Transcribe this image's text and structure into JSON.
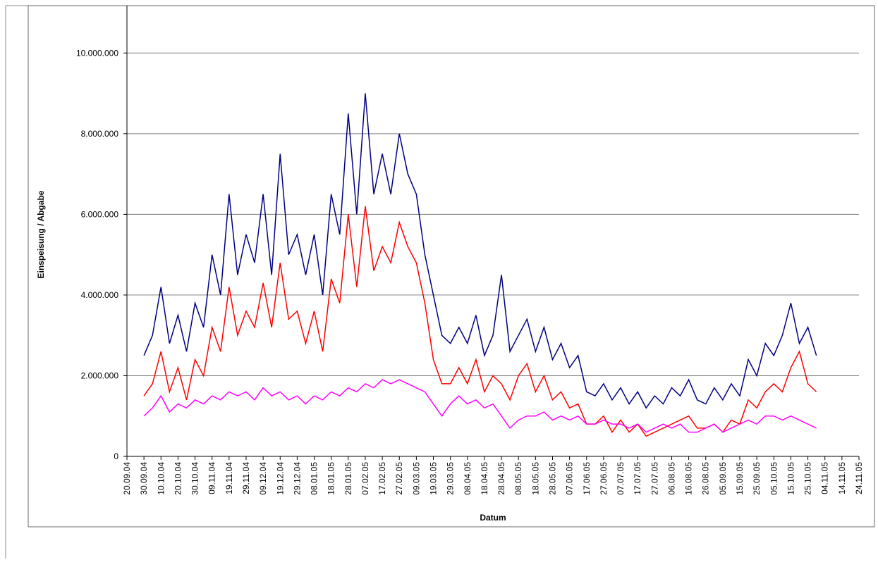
{
  "chart_data": {
    "type": "line",
    "x_label": "Datum",
    "y_label": "Einspeisung / Abgabe",
    "x": [
      "30.09.04",
      "05.10.04",
      "10.10.04",
      "15.10.04",
      "20.10.04",
      "25.10.04",
      "30.10.04",
      "04.11.04",
      "09.11.04",
      "14.11.04",
      "19.11.04",
      "24.11.04",
      "29.11.04",
      "04.12.04",
      "09.12.04",
      "14.12.04",
      "19.12.04",
      "24.12.04",
      "29.12.04",
      "03.01.05",
      "08.01.05",
      "13.01.05",
      "18.01.05",
      "23.01.05",
      "28.01.05",
      "02.02.05",
      "07.02.05",
      "12.02.05",
      "17.02.05",
      "22.02.05",
      "27.02.05",
      "04.03.05",
      "09.03.05",
      "14.03.05",
      "19.03.05",
      "24.03.05",
      "29.03.05",
      "03.04.05",
      "08.04.05",
      "13.04.05",
      "18.04.05",
      "23.04.05",
      "28.04.05",
      "03.05.05",
      "08.05.05",
      "13.05.05",
      "18.05.05",
      "23.05.05",
      "28.05.05",
      "02.06.05",
      "07.06.05",
      "12.06.05",
      "17.06.05",
      "22.06.05",
      "27.06.05",
      "02.07.05",
      "07.07.05",
      "12.07.05",
      "17.07.05",
      "22.07.05",
      "27.07.05",
      "01.08.05",
      "06.08.05",
      "11.08.05",
      "16.08.05",
      "21.08.05",
      "26.08.05",
      "31.08.05",
      "05.09.05",
      "10.09.05",
      "15.09.05",
      "20.09.05",
      "25.09.05",
      "30.09.05",
      "05.10.05",
      "10.10.05",
      "15.10.05",
      "20.10.05",
      "25.10.05",
      "30.10.05"
    ],
    "series": [
      {
        "color": "#000080",
        "values": [
          2500000,
          3000000,
          4200000,
          2800000,
          3500000,
          2600000,
          3800000,
          3200000,
          5000000,
          4000000,
          6500000,
          4500000,
          5500000,
          4800000,
          6500000,
          4500000,
          7500000,
          5000000,
          5500000,
          4500000,
          5500000,
          4000000,
          6500000,
          5500000,
          8500000,
          6000000,
          9000000,
          6500000,
          7500000,
          6500000,
          8000000,
          7000000,
          6500000,
          5000000,
          4000000,
          3000000,
          2800000,
          3200000,
          2800000,
          3500000,
          2500000,
          3000000,
          4500000,
          2600000,
          3000000,
          3400000,
          2600000,
          3200000,
          2400000,
          2800000,
          2200000,
          2500000,
          1600000,
          1500000,
          1800000,
          1400000,
          1700000,
          1300000,
          1600000,
          1200000,
          1500000,
          1300000,
          1700000,
          1500000,
          1900000,
          1400000,
          1300000,
          1700000,
          1400000,
          1800000,
          1500000,
          2400000,
          2000000,
          2800000,
          2500000,
          3000000,
          3800000,
          2800000,
          3200000,
          2500000
        ]
      },
      {
        "color": "#ff0000",
        "values": [
          1500000,
          1800000,
          2600000,
          1600000,
          2200000,
          1400000,
          2400000,
          2000000,
          3200000,
          2600000,
          4200000,
          3000000,
          3600000,
          3200000,
          4300000,
          3200000,
          4800000,
          3400000,
          3600000,
          2800000,
          3600000,
          2600000,
          4400000,
          3800000,
          6000000,
          4200000,
          6200000,
          4600000,
          5200000,
          4800000,
          5800000,
          5200000,
          4800000,
          3800000,
          2400000,
          1800000,
          1800000,
          2200000,
          1800000,
          2400000,
          1600000,
          2000000,
          1800000,
          1400000,
          2000000,
          2300000,
          1600000,
          2000000,
          1400000,
          1600000,
          1200000,
          1300000,
          800000,
          800000,
          1000000,
          600000,
          900000,
          600000,
          800000,
          500000,
          600000,
          700000,
          800000,
          900000,
          1000000,
          700000,
          700000,
          800000,
          600000,
          900000,
          800000,
          1400000,
          1200000,
          1600000,
          1800000,
          1600000,
          2200000,
          2600000,
          1800000,
          1600000
        ]
      },
      {
        "color": "#ff00ff",
        "values": [
          1000000,
          1200000,
          1500000,
          1100000,
          1300000,
          1200000,
          1400000,
          1300000,
          1500000,
          1400000,
          1600000,
          1500000,
          1600000,
          1400000,
          1700000,
          1500000,
          1600000,
          1400000,
          1500000,
          1300000,
          1500000,
          1400000,
          1600000,
          1500000,
          1700000,
          1600000,
          1800000,
          1700000,
          1900000,
          1800000,
          1900000,
          1800000,
          1700000,
          1600000,
          1300000,
          1000000,
          1300000,
          1500000,
          1300000,
          1400000,
          1200000,
          1300000,
          1000000,
          700000,
          900000,
          1000000,
          1000000,
          1100000,
          900000,
          1000000,
          900000,
          1000000,
          800000,
          800000,
          900000,
          800000,
          800000,
          700000,
          800000,
          600000,
          700000,
          800000,
          700000,
          800000,
          600000,
          600000,
          700000,
          800000,
          600000,
          700000,
          800000,
          900000,
          800000,
          1000000,
          1000000,
          900000,
          1000000,
          900000,
          800000,
          700000
        ]
      }
    ],
    "xlim": [
      "20.09.04",
      "24.11.05"
    ],
    "xticks": [
      "20.09.04",
      "30.09.04",
      "10.10.04",
      "20.10.04",
      "30.10.04",
      "09.11.04",
      "19.11.04",
      "29.11.04",
      "09.12.04",
      "19.12.04",
      "29.12.04",
      "08.01.05",
      "18.01.05",
      "28.01.05",
      "07.02.05",
      "17.02.05",
      "27.02.05",
      "09.03.05",
      "19.03.05",
      "29.03.05",
      "08.04.05",
      "18.04.05",
      "28.04.05",
      "08.05.05",
      "18.05.05",
      "28.05.05",
      "07.06.05",
      "17.06.05",
      "27.06.05",
      "07.07.05",
      "17.07.05",
      "27.07.05",
      "06.08.05",
      "16.08.05",
      "26.08.05",
      "05.09.05",
      "15.09.05",
      "25.09.05",
      "05.10.05",
      "15.10.05",
      "25.10.05",
      "04.11.05",
      "14.11.05",
      "24.11.05"
    ],
    "ylim": [
      0,
      11000000
    ],
    "yticks": [
      0,
      {
        "value": 2000000,
        "label": "2.000.000"
      },
      {
        "value": 4000000,
        "label": "4.000.000"
      },
      {
        "value": 6000000,
        "label": "6.000.000"
      },
      {
        "value": 8000000,
        "label": "8.000.000"
      },
      {
        "value": 10000000,
        "label": "10.000.000"
      }
    ],
    "grid": true
  }
}
